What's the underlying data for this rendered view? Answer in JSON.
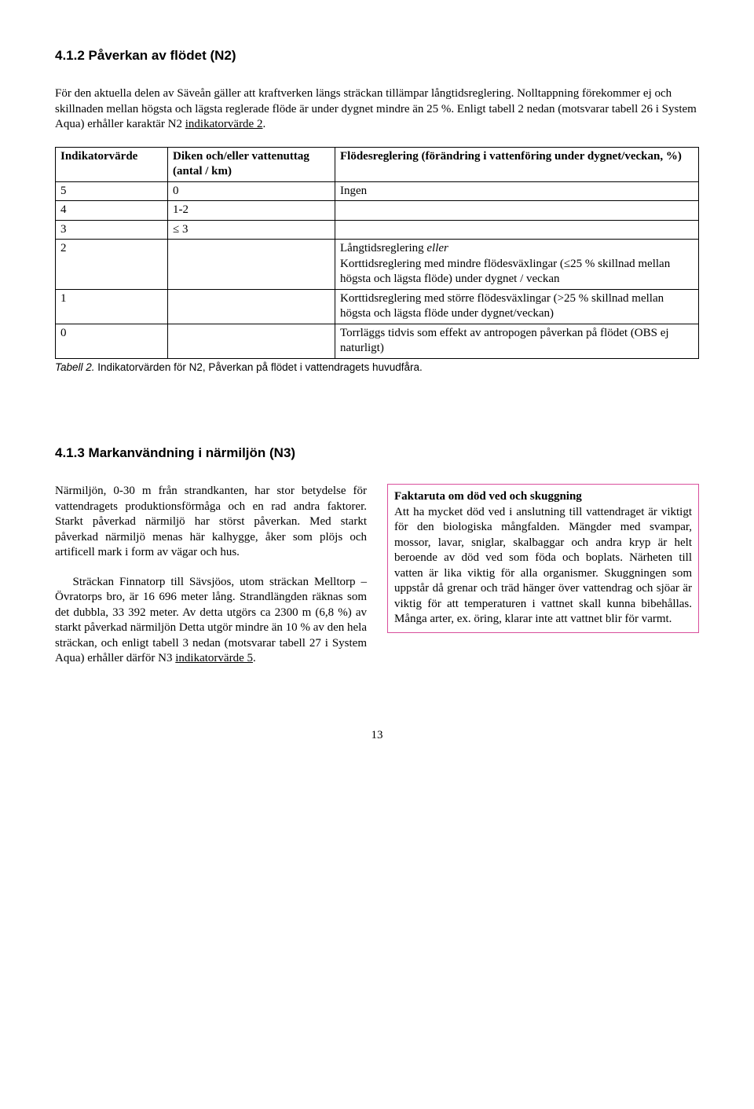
{
  "section1": {
    "heading": "4.1.2 Påverkan av flödet (N2)",
    "para_parts": {
      "p1a": "För den aktuella delen av Säveån gäller att kraftverken längs sträckan tillämpar långtidsreglering. Nolltappning förekommer ej och skillnaden mellan högsta och lägsta reglerade flöde är under dygnet mindre än 25 %. Enligt tabell 2 nedan (motsvarar tabell 26 i System Aqua) erhåller karaktär N2 ",
      "p1u": "indikatorvärde 2",
      "p1b": "."
    }
  },
  "table": {
    "headers": {
      "c1": "Indikatorvärde",
      "c2": "Diken och/eller vattenuttag (antal / km)",
      "c3": "Flödesreglering (förändring i vattenföring under dygnet/veckan, %)"
    },
    "rows": [
      {
        "c1": "5",
        "c2": "0",
        "c3": "Ingen"
      },
      {
        "c1": "4",
        "c2": "1-2",
        "c3": ""
      },
      {
        "c1": "3",
        "c2": "≤ 3",
        "c3": ""
      },
      {
        "c1": "2",
        "c2": "",
        "c3_pre": "Långtidsreglering ",
        "c3_ital": "eller",
        "c3_post": "\nKorttidsreglering med mindre flödesväxlingar (≤25 % skillnad mellan högsta och lägsta flöde) under dygnet / veckan"
      },
      {
        "c1": "1",
        "c2": "",
        "c3": "Korttidsreglering med större flödesväxlingar (>25 % skillnad mellan högsta och lägsta flöde under dygnet/veckan)"
      },
      {
        "c1": "0",
        "c2": "",
        "c3": "Torrläggs tidvis som effekt av antropogen påverkan på flödet (OBS ej naturligt)"
      }
    ],
    "caption_ital": "Tabell 2.",
    "caption_rest": " Indikatorvärden för N2, Påverkan på flödet i vattendragets huvudfåra."
  },
  "section2": {
    "heading": "4.1.3 Markanvändning i närmiljön (N3)",
    "left_p1": "Närmiljön, 0-30 m från strandkanten, har stor betydelse för vattendragets produktionsförmåga och en rad andra faktorer. Starkt påverkad närmiljö har störst påverkan. Med starkt påverkad närmiljö menas här kalhygge, åker som plöjs och artificell mark i form av vägar och hus.",
    "left_p2a": "Sträckan Finnatorp till Sävsjöos, utom sträckan Melltorp – Övratorps bro, är 16 696 meter lång. Strandlängden räknas som det dubbla, 33 392 meter. Av detta utgörs ca 2300 m (6,8 %) av starkt påverkad närmiljön Detta utgör mindre än 10 % av den hela sträckan, och enligt tabell 3 nedan (motsvarar tabell 27 i System Aqua) erhåller därför N3 ",
    "left_p2u": "indikatorvärde 5",
    "left_p2b": ".",
    "box_title": "Faktaruta om död ved och skuggning",
    "box_body": "Att ha mycket död ved i anslutning till vattendraget är viktigt för den biologiska mångfalden. Mängder med svampar, mossor, lavar, sniglar, skalbaggar och andra kryp är helt beroende av död ved som föda och boplats. Närheten till vatten är lika viktig för alla organismer. Skuggningen som uppstår då grenar och träd hänger över vattendrag och sjöar är viktig för att temperaturen i vattnet skall kunna bibehållas. Många arter, ex. öring, klarar inte att vattnet blir för varmt."
  },
  "pagenum": "13"
}
